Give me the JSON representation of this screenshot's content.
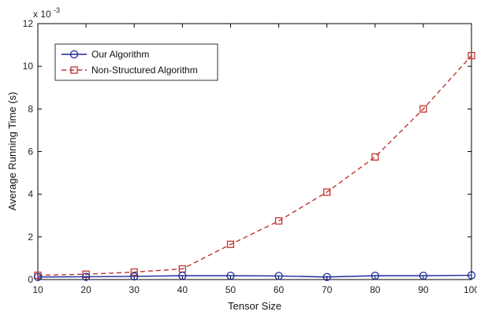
{
  "chart_data": {
    "type": "line",
    "title": "",
    "xlabel": "Tensor Size",
    "ylabel": "Average Running Time (s)",
    "y_multiplier_label": "x 10",
    "y_multiplier_exponent": "-3",
    "x": [
      10,
      20,
      30,
      40,
      50,
      60,
      70,
      80,
      90,
      100
    ],
    "xlim": [
      10,
      100
    ],
    "ylim": [
      0,
      12
    ],
    "x_ticks": [
      "10",
      "20",
      "30",
      "40",
      "50",
      "60",
      "70",
      "80",
      "90",
      "100"
    ],
    "y_ticks": [
      "0",
      "2",
      "4",
      "6",
      "8",
      "10",
      "12"
    ],
    "grid": false,
    "legend_position": "top-left",
    "series": [
      {
        "name": "Our Algorithm",
        "color": "#1f2a9a",
        "line_style": "solid",
        "marker": "circle",
        "values": [
          0.12,
          0.13,
          0.15,
          0.18,
          0.18,
          0.17,
          0.12,
          0.18,
          0.18,
          0.2
        ]
      },
      {
        "name": "Non-Structured Algorithm",
        "color": "#c0352f",
        "line_style": "dashed",
        "marker": "square",
        "values": [
          0.2,
          0.25,
          0.35,
          0.5,
          1.65,
          2.75,
          4.1,
          5.75,
          8.0,
          10.5
        ]
      }
    ]
  }
}
